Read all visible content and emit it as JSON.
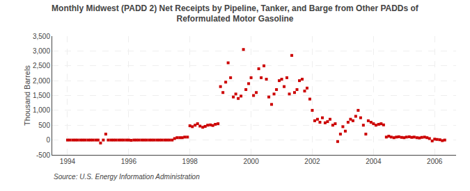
{
  "chart_data": {
    "type": "scatter",
    "title": "Monthly Midwest (PADD 2) Net Receipts by Pipeline, Tanker, and Barge from Other PADDs of\nReformulated Motor Gasoline",
    "ylabel": "Thousand Barrels",
    "annotations": [
      "Source: U.S. Energy Information Administration"
    ],
    "color": "#cc0000",
    "marker": "square",
    "grid": true,
    "xlim": [
      1993.5,
      2006.7
    ],
    "ylim": [
      -500,
      3500
    ],
    "xticks": [
      1994,
      1996,
      1998,
      2000,
      2002,
      2004,
      2006
    ],
    "yticks": [
      -500,
      0,
      500,
      {
        "value": 1000,
        "label": "1,000"
      },
      {
        "value": 1500,
        "label": "1,500"
      },
      {
        "value": 2000,
        "label": "2,000"
      },
      {
        "value": 2500,
        "label": "2,500"
      },
      {
        "value": 3000,
        "label": "3,000"
      },
      {
        "value": 3500,
        "label": "3,500"
      }
    ],
    "x": [
      1994.0,
      1994.08,
      1994.17,
      1994.25,
      1994.33,
      1994.42,
      1994.5,
      1994.58,
      1994.67,
      1994.75,
      1994.83,
      1994.92,
      1995.0,
      1995.08,
      1995.17,
      1995.25,
      1995.33,
      1995.42,
      1995.5,
      1995.58,
      1995.67,
      1995.75,
      1995.83,
      1995.92,
      1996.0,
      1996.08,
      1996.17,
      1996.25,
      1996.33,
      1996.42,
      1996.5,
      1996.58,
      1996.67,
      1996.75,
      1996.83,
      1996.92,
      1997.0,
      1997.08,
      1997.17,
      1997.25,
      1997.33,
      1997.42,
      1997.5,
      1997.58,
      1997.67,
      1997.75,
      1997.83,
      1997.92,
      1998.0,
      1998.08,
      1998.17,
      1998.25,
      1998.33,
      1998.42,
      1998.5,
      1998.58,
      1998.67,
      1998.75,
      1998.83,
      1998.92,
      1999.0,
      1999.08,
      1999.17,
      1999.25,
      1999.33,
      1999.42,
      1999.5,
      1999.58,
      1999.67,
      1999.75,
      1999.83,
      1999.92,
      2000.0,
      2000.08,
      2000.17,
      2000.25,
      2000.33,
      2000.42,
      2000.5,
      2000.58,
      2000.67,
      2000.75,
      2000.83,
      2000.92,
      2001.0,
      2001.08,
      2001.17,
      2001.25,
      2001.33,
      2001.42,
      2001.5,
      2001.58,
      2001.67,
      2001.75,
      2001.83,
      2001.92,
      2002.0,
      2002.08,
      2002.17,
      2002.25,
      2002.33,
      2002.42,
      2002.5,
      2002.58,
      2002.67,
      2002.75,
      2002.83,
      2002.92,
      2003.0,
      2003.08,
      2003.17,
      2003.25,
      2003.33,
      2003.42,
      2003.5,
      2003.58,
      2003.67,
      2003.75,
      2003.83,
      2003.92,
      2004.0,
      2004.08,
      2004.17,
      2004.25,
      2004.33,
      2004.42,
      2004.5,
      2004.58,
      2004.67,
      2004.75,
      2004.83,
      2004.92,
      2005.0,
      2005.08,
      2005.17,
      2005.25,
      2005.33,
      2005.42,
      2005.5,
      2005.58,
      2005.67,
      2005.75,
      2005.83,
      2005.92,
      2006.0,
      2006.08,
      2006.17,
      2006.25,
      2006.33
    ],
    "values": [
      0,
      0,
      0,
      0,
      0,
      0,
      0,
      0,
      0,
      0,
      0,
      0,
      0,
      -100,
      0,
      200,
      0,
      0,
      0,
      0,
      0,
      0,
      0,
      0,
      0,
      -10,
      0,
      0,
      0,
      0,
      0,
      0,
      0,
      0,
      0,
      0,
      0,
      0,
      0,
      0,
      0,
      0,
      50,
      80,
      80,
      80,
      100,
      100,
      480,
      450,
      500,
      550,
      470,
      430,
      460,
      500,
      510,
      490,
      530,
      550,
      1800,
      1600,
      1950,
      2600,
      2100,
      1450,
      1550,
      1400,
      1480,
      3050,
      1700,
      1900,
      2100,
      1500,
      1600,
      2400,
      2100,
      2500,
      2050,
      1450,
      1200,
      1550,
      1700,
      2000,
      2050,
      1800,
      2100,
      1550,
      2850,
      1600,
      1700,
      2000,
      2050,
      1650,
      1750,
      1380,
      1000,
      650,
      700,
      600,
      750,
      580,
      620,
      700,
      500,
      550,
      -50,
      200,
      450,
      300,
      600,
      700,
      650,
      800,
      1000,
      750,
      500,
      200,
      650,
      600,
      550,
      500,
      530,
      550,
      510,
      100,
      130,
      100,
      80,
      100,
      110,
      90,
      80,
      100,
      110,
      90,
      100,
      80,
      70,
      90,
      100,
      80,
      50,
      -30,
      30,
      20,
      10,
      -20,
      0
    ]
  }
}
